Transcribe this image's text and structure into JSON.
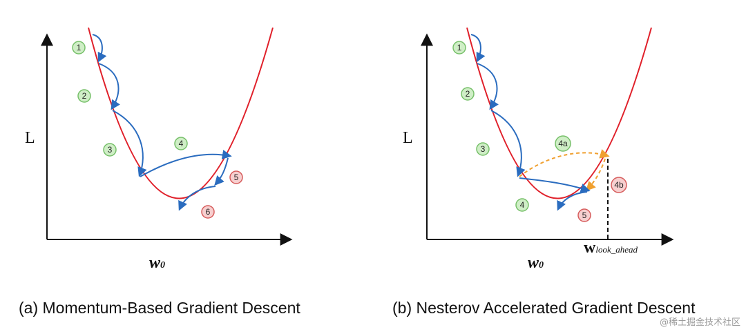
{
  "left_panel": {
    "y_axis_label": "L",
    "x_axis_label_main": "w",
    "x_axis_label_sub": "0",
    "caption": "(a) Momentum-Based Gradient Descent",
    "steps": [
      {
        "label": "1",
        "kind": "green"
      },
      {
        "label": "2",
        "kind": "green"
      },
      {
        "label": "3",
        "kind": "green"
      },
      {
        "label": "4",
        "kind": "green"
      },
      {
        "label": "5",
        "kind": "red"
      },
      {
        "label": "6",
        "kind": "red"
      }
    ]
  },
  "right_panel": {
    "y_axis_label": "L",
    "x_axis_label_main": "w",
    "x_axis_label_sub": "0",
    "lookahead_main": "w",
    "lookahead_sub": "look_ahead",
    "caption": "(b) Nesterov Accelerated Gradient Descent",
    "steps": [
      {
        "label": "1",
        "kind": "green"
      },
      {
        "label": "2",
        "kind": "green"
      },
      {
        "label": "3",
        "kind": "green"
      },
      {
        "label": "4a",
        "kind": "green"
      },
      {
        "label": "4b",
        "kind": "red"
      },
      {
        "label": "4",
        "kind": "green"
      },
      {
        "label": "5",
        "kind": "red"
      }
    ]
  },
  "watermark": "@稀土掘金技术社区",
  "colors": {
    "curve": "#e0202a",
    "arrow": "#2a6cbf",
    "lookahead_arrow": "#f0a030",
    "green_fill": "#cfeec6",
    "green_stroke": "#77c06a",
    "red_fill": "#f7cfcf",
    "red_stroke": "#d65c5c",
    "axis": "#111111"
  }
}
